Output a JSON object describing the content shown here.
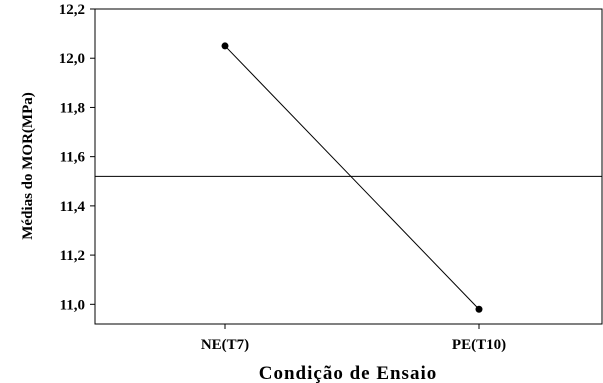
{
  "chart_data": {
    "type": "line",
    "title": "",
    "xlabel": "Condição de Ensaio",
    "ylabel": "Médias do MOR(MPa)",
    "categories": [
      "NE(T7)",
      "PE(T10)"
    ],
    "series": [
      {
        "values": [
          12.05,
          10.98
        ]
      }
    ],
    "reference_line": 11.52,
    "ylim": [
      10.92,
      12.2
    ],
    "yticks": [
      11.0,
      11.2,
      11.4,
      11.6,
      11.8,
      12.0,
      12.2
    ],
    "ytick_labels": [
      "11,0",
      "11,2",
      "11,4",
      "11,6",
      "11,8",
      "12,0",
      "12,2"
    ],
    "grid": false,
    "legend": "none",
    "colors": {
      "line": "#000000",
      "marker": "#000000",
      "frame": "#000000"
    }
  }
}
